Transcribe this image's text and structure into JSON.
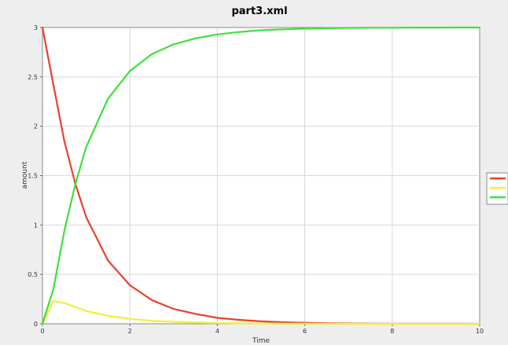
{
  "chart_data": {
    "type": "line",
    "title": "part3.xml",
    "xlabel": "Time",
    "ylabel": "amount",
    "xlim": [
      0,
      10
    ],
    "ylim": [
      0,
      3
    ],
    "x_ticks": [
      "0",
      "2",
      "4",
      "6",
      "8",
      "10"
    ],
    "y_ticks": [
      "0",
      "0.5",
      "1",
      "1.5",
      "2",
      "2.5",
      "3"
    ],
    "grid": true,
    "legend_placement": "right",
    "x": [
      0,
      0.25,
      0.5,
      0.75,
      1,
      1.5,
      2,
      2.5,
      3,
      3.5,
      4,
      4.5,
      5,
      5.5,
      6,
      6.5,
      7,
      7.5,
      8,
      8.5,
      9,
      9.5,
      10
    ],
    "series": [
      {
        "color": "#e8412c",
        "values": [
          3.0,
          2.42,
          1.85,
          1.42,
          1.08,
          0.64,
          0.39,
          0.24,
          0.15,
          0.1,
          0.06,
          0.04,
          0.025,
          0.016,
          0.01,
          0.006,
          0.004,
          0.002,
          0.0015,
          0.001,
          0.0006,
          0.0004,
          0.0002
        ]
      },
      {
        "color": "#f2ee3a",
        "values": [
          0.0,
          0.23,
          0.21,
          0.17,
          0.13,
          0.08,
          0.05,
          0.03,
          0.02,
          0.013,
          0.008,
          0.005,
          0.003,
          0.002,
          0.001,
          0.0008,
          0.0005,
          0.0003,
          0.0002,
          0.0001,
          0.0001,
          0.0,
          0.0
        ]
      },
      {
        "color": "#3ee03a",
        "values": [
          0.0,
          0.35,
          0.94,
          1.41,
          1.79,
          2.28,
          2.56,
          2.73,
          2.83,
          2.89,
          2.93,
          2.955,
          2.972,
          2.982,
          2.989,
          2.993,
          2.996,
          2.998,
          2.998,
          2.999,
          2.999,
          3.0,
          3.0
        ]
      }
    ]
  }
}
